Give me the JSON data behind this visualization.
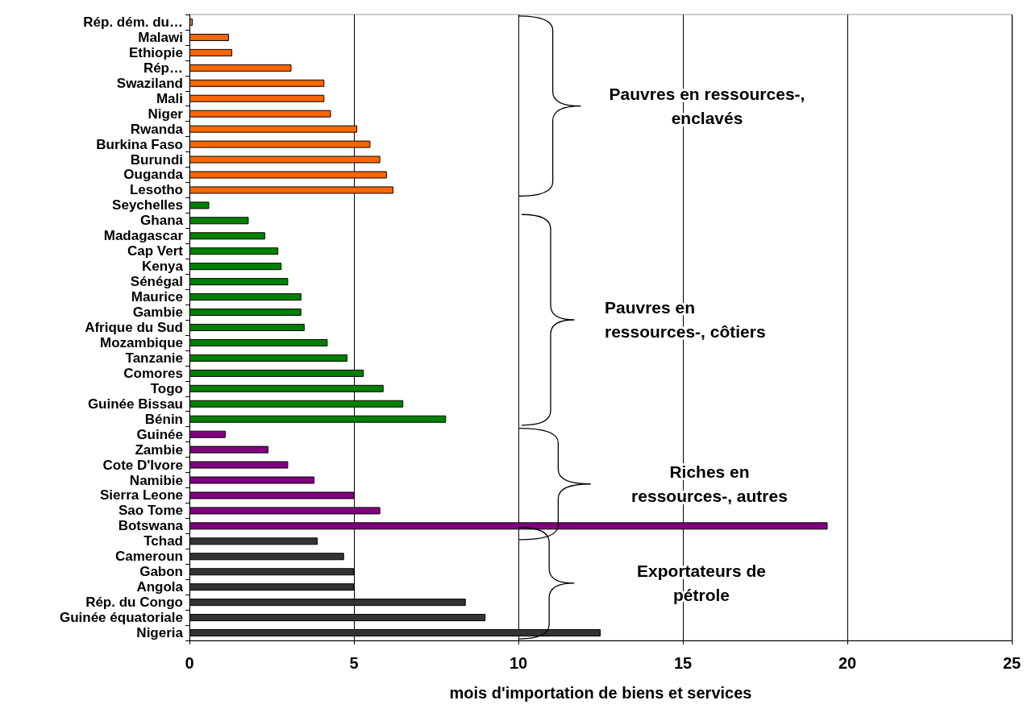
{
  "chart_data": {
    "type": "bar",
    "orientation": "horizontal",
    "xlabel": "mois d'importation de biens et services",
    "categories": [
      "Rép. dém. du…",
      "Malawi",
      "Ethiopie",
      "Rép…",
      "Swaziland",
      "Mali",
      "Niger",
      "Rwanda",
      "Burkina Faso",
      "Burundi",
      "Ouganda",
      "Lesotho",
      "Seychelles",
      "Ghana",
      "Madagascar",
      "Cap Vert",
      "Kenya",
      "Sénégal",
      "Maurice",
      "Gambie",
      "Afrique du Sud",
      "Mozambique",
      "Tanzanie",
      "Comores",
      "Togo",
      "Guinée Bissau",
      "Bénin",
      "Guinée",
      "Zambie",
      "Cote D'Ivore",
      "Namibie",
      "Sierra Leone",
      "Sao Tome",
      "Botswana",
      "Tchad",
      "Cameroun",
      "Gabon",
      "Angola",
      "Rép. du Congo",
      "Guinée équatoriale",
      "Nigeria"
    ],
    "values": [
      0.1,
      1.2,
      1.3,
      3.1,
      4.1,
      4.1,
      4.3,
      5.1,
      5.5,
      5.8,
      6.0,
      6.2,
      0.6,
      1.8,
      2.3,
      2.7,
      2.8,
      3.0,
      3.4,
      3.4,
      3.5,
      4.2,
      4.8,
      5.3,
      5.9,
      6.5,
      7.8,
      1.1,
      2.4,
      3.0,
      3.8,
      5.0,
      5.8,
      19.4,
      3.9,
      4.7,
      5.0,
      5.0,
      8.4,
      9.0,
      12.5
    ],
    "colors": [
      "#ff6600",
      "#ff6600",
      "#ff6600",
      "#ff6600",
      "#ff6600",
      "#ff6600",
      "#ff6600",
      "#ff6600",
      "#ff6600",
      "#ff6600",
      "#ff6600",
      "#ff6600",
      "#008000",
      "#008000",
      "#008000",
      "#008000",
      "#008000",
      "#008000",
      "#008000",
      "#008000",
      "#008000",
      "#008000",
      "#008000",
      "#008000",
      "#008000",
      "#008000",
      "#008000",
      "#800080",
      "#800080",
      "#800080",
      "#800080",
      "#800080",
      "#800080",
      "#800080",
      "#333333",
      "#333333",
      "#333333",
      "#333333",
      "#333333",
      "#333333",
      "#333333"
    ],
    "xlim": [
      0,
      25
    ],
    "xticks": [
      0,
      5,
      10,
      15,
      20,
      25
    ],
    "grid": "x",
    "annotations": [
      "Pauvres en ressources-,\nenclavés",
      "Pauvres en\nressources-, côtiers",
      "Riches en\nressources-, autres",
      "Exportateurs de\npétrole"
    ]
  }
}
